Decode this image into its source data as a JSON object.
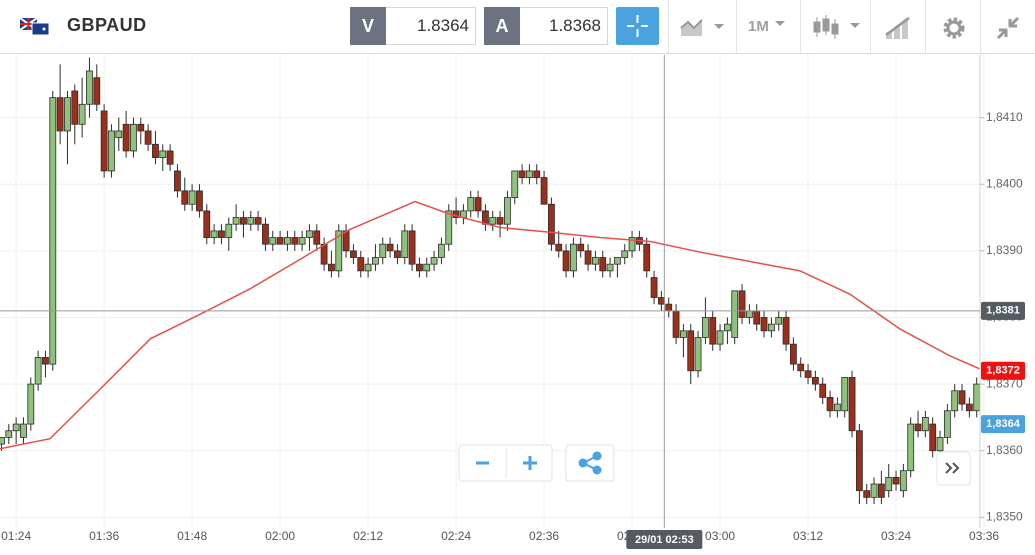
{
  "toolbar": {
    "symbol": "GBPAUD",
    "bid_label": "V",
    "bid": 1.8364,
    "ask_label": "A",
    "ask": 1.8368,
    "timeframe": "1M"
  },
  "chart_data": {
    "type": "candlestick",
    "up_color": "#8fc27c",
    "down_color": "#9c2f1c",
    "outline_color": "#2b2b2b",
    "candles": [
      [
        1.8361,
        1.8362,
        1.836,
        1.8362
      ],
      [
        1.8362,
        1.8364,
        1.8361,
        1.8363
      ],
      [
        1.8363,
        1.8365,
        1.8361,
        1.8364
      ],
      [
        1.8362,
        1.8365,
        1.8361,
        1.8364
      ],
      [
        1.8364,
        1.8371,
        1.8363,
        1.837
      ],
      [
        1.837,
        1.8375,
        1.8369,
        1.8374
      ],
      [
        1.8374,
        1.8375,
        1.8371,
        1.8373
      ],
      [
        1.8373,
        1.8414,
        1.8372,
        1.8413
      ],
      [
        1.8413,
        1.8418,
        1.8406,
        1.8408
      ],
      [
        1.8408,
        1.8414,
        1.8403,
        1.8413
      ],
      [
        1.8414,
        1.8415,
        1.8406,
        1.8409
      ],
      [
        1.8409,
        1.8416,
        1.8407,
        1.8412
      ],
      [
        1.8412,
        1.8419,
        1.841,
        1.8417
      ],
      [
        1.8416,
        1.8418,
        1.8411,
        1.8412
      ],
      [
        1.8411,
        1.8412,
        1.8401,
        1.8402
      ],
      [
        1.8402,
        1.8409,
        1.8401,
        1.8408
      ],
      [
        1.8407,
        1.841,
        1.8405,
        1.8408
      ],
      [
        1.8409,
        1.8411,
        1.8404,
        1.8405
      ],
      [
        1.8405,
        1.841,
        1.8404,
        1.8409
      ],
      [
        1.8409,
        1.841,
        1.8406,
        1.8408
      ],
      [
        1.8408,
        1.8409,
        1.8405,
        1.8406
      ],
      [
        1.8406,
        1.8408,
        1.8403,
        1.8404
      ],
      [
        1.8404,
        1.8406,
        1.8402,
        1.8405
      ],
      [
        1.8405,
        1.8406,
        1.8402,
        1.8403
      ],
      [
        1.8402,
        1.8403,
        1.8398,
        1.8399
      ],
      [
        1.8399,
        1.8401,
        1.8396,
        1.8397
      ],
      [
        1.8397,
        1.84,
        1.8396,
        1.8399
      ],
      [
        1.8399,
        1.84,
        1.8395,
        1.8396
      ],
      [
        1.8396,
        1.8397,
        1.8391,
        1.8392
      ],
      [
        1.8392,
        1.8394,
        1.8391,
        1.8393
      ],
      [
        1.8393,
        1.8394,
        1.8391,
        1.8392
      ],
      [
        1.8392,
        1.8395,
        1.839,
        1.8394
      ],
      [
        1.8394,
        1.8397,
        1.8393,
        1.8395
      ],
      [
        1.8395,
        1.8396,
        1.8392,
        1.8394
      ],
      [
        1.8394,
        1.8396,
        1.8393,
        1.8395
      ],
      [
        1.8395,
        1.8396,
        1.8393,
        1.8394
      ],
      [
        1.8394,
        1.8395,
        1.839,
        1.8391
      ],
      [
        1.8391,
        1.8393,
        1.839,
        1.8392
      ],
      [
        1.8392,
        1.8393,
        1.8391,
        1.8391
      ],
      [
        1.8391,
        1.8393,
        1.839,
        1.8392
      ],
      [
        1.8392,
        1.8393,
        1.839,
        1.8391
      ],
      [
        1.8391,
        1.8393,
        1.839,
        1.8392
      ],
      [
        1.8392,
        1.8394,
        1.839,
        1.8393
      ],
      [
        1.8393,
        1.8394,
        1.839,
        1.8391
      ],
      [
        1.8391,
        1.8392,
        1.8387,
        1.8388
      ],
      [
        1.8388,
        1.839,
        1.8386,
        1.8387
      ],
      [
        1.8387,
        1.8394,
        1.8386,
        1.8393
      ],
      [
        1.8393,
        1.8394,
        1.8389,
        1.839
      ],
      [
        1.839,
        1.8391,
        1.8388,
        1.8389
      ],
      [
        1.8389,
        1.839,
        1.8386,
        1.8387
      ],
      [
        1.8387,
        1.8389,
        1.8386,
        1.8388
      ],
      [
        1.8388,
        1.8391,
        1.8387,
        1.8389
      ],
      [
        1.8389,
        1.8392,
        1.8388,
        1.8391
      ],
      [
        1.8391,
        1.8392,
        1.8389,
        1.839
      ],
      [
        1.839,
        1.8391,
        1.8388,
        1.8389
      ],
      [
        1.8389,
        1.8394,
        1.8388,
        1.8393
      ],
      [
        1.8393,
        1.8394,
        1.8387,
        1.8388
      ],
      [
        1.8388,
        1.8389,
        1.8386,
        1.8387
      ],
      [
        1.8387,
        1.8389,
        1.8386,
        1.8388
      ],
      [
        1.8388,
        1.839,
        1.8387,
        1.8389
      ],
      [
        1.8389,
        1.8392,
        1.8388,
        1.8391
      ],
      [
        1.8391,
        1.8397,
        1.839,
        1.8396
      ],
      [
        1.8396,
        1.8398,
        1.8394,
        1.8395
      ],
      [
        1.8395,
        1.8397,
        1.8394,
        1.8396
      ],
      [
        1.8396,
        1.8399,
        1.8395,
        1.8398
      ],
      [
        1.8398,
        1.8399,
        1.8395,
        1.8396
      ],
      [
        1.8396,
        1.8397,
        1.8393,
        1.8394
      ],
      [
        1.8394,
        1.8396,
        1.8393,
        1.8395
      ],
      [
        1.8395,
        1.8396,
        1.8392,
        1.8394
      ],
      [
        1.8394,
        1.8399,
        1.8393,
        1.8398
      ],
      [
        1.8398,
        1.8402,
        1.8397,
        1.8402
      ],
      [
        1.8402,
        1.8403,
        1.84,
        1.8401
      ],
      [
        1.8401,
        1.8403,
        1.84,
        1.8402
      ],
      [
        1.8402,
        1.8403,
        1.84,
        1.8401
      ],
      [
        1.8401,
        1.8402,
        1.8397,
        1.8397
      ],
      [
        1.8397,
        1.8398,
        1.839,
        1.8391
      ],
      [
        1.8391,
        1.8393,
        1.8389,
        1.839
      ],
      [
        1.839,
        1.8391,
        1.8386,
        1.8387
      ],
      [
        1.8387,
        1.8392,
        1.8386,
        1.8391
      ],
      [
        1.8391,
        1.8392,
        1.8389,
        1.839
      ],
      [
        1.839,
        1.8391,
        1.8387,
        1.8388
      ],
      [
        1.8388,
        1.839,
        1.8387,
        1.8389
      ],
      [
        1.8389,
        1.839,
        1.8386,
        1.8387
      ],
      [
        1.8387,
        1.8389,
        1.8386,
        1.8388
      ],
      [
        1.8388,
        1.8389,
        1.8386,
        1.8389
      ],
      [
        1.8389,
        1.8391,
        1.8388,
        1.839
      ],
      [
        1.839,
        1.8393,
        1.8389,
        1.8392
      ],
      [
        1.8392,
        1.8393,
        1.839,
        1.8391
      ],
      [
        1.8391,
        1.8392,
        1.8386,
        1.8387
      ],
      [
        1.8386,
        1.8387,
        1.8382,
        1.8383
      ],
      [
        1.8383,
        1.8384,
        1.8381,
        1.8382
      ],
      [
        1.8382,
        1.8383,
        1.838,
        1.8381
      ],
      [
        1.8381,
        1.8382,
        1.8376,
        1.8377
      ],
      [
        1.8377,
        1.8379,
        1.8374,
        1.8378
      ],
      [
        1.8378,
        1.8379,
        1.837,
        1.8372
      ],
      [
        1.8372,
        1.8378,
        1.8371,
        1.8377
      ],
      [
        1.8377,
        1.8383,
        1.8376,
        1.838
      ],
      [
        1.838,
        1.8381,
        1.8375,
        1.8376
      ],
      [
        1.8376,
        1.8379,
        1.8375,
        1.8378
      ],
      [
        1.8378,
        1.838,
        1.8376,
        1.8379
      ],
      [
        1.8377,
        1.8384,
        1.8376,
        1.8384
      ],
      [
        1.8384,
        1.8385,
        1.8379,
        1.838
      ],
      [
        1.838,
        1.8382,
        1.8379,
        1.8381
      ],
      [
        1.8381,
        1.8382,
        1.8378,
        1.8379
      ],
      [
        1.838,
        1.8381,
        1.8377,
        1.8378
      ],
      [
        1.8378,
        1.838,
        1.8377,
        1.8379
      ],
      [
        1.8379,
        1.8381,
        1.8378,
        1.838
      ],
      [
        1.838,
        1.8381,
        1.8375,
        1.8376
      ],
      [
        1.8376,
        1.8377,
        1.8372,
        1.8373
      ],
      [
        1.8373,
        1.8374,
        1.8371,
        1.8372
      ],
      [
        1.8372,
        1.8373,
        1.837,
        1.8371
      ],
      [
        1.8371,
        1.8372,
        1.8369,
        1.837
      ],
      [
        1.837,
        1.8371,
        1.8367,
        1.8368
      ],
      [
        1.8368,
        1.8369,
        1.8365,
        1.8366
      ],
      [
        1.8366,
        1.8368,
        1.8365,
        1.8367
      ],
      [
        1.8366,
        1.8371,
        1.8365,
        1.8371
      ],
      [
        1.8371,
        1.8372,
        1.8362,
        1.8363
      ],
      [
        1.8363,
        1.8364,
        1.8352,
        1.8354
      ],
      [
        1.8354,
        1.8355,
        1.8352,
        1.8353
      ],
      [
        1.8353,
        1.8356,
        1.8352,
        1.8355
      ],
      [
        1.8355,
        1.8357,
        1.8352,
        1.8353
      ],
      [
        1.8354,
        1.8358,
        1.8353,
        1.8356
      ],
      [
        1.8356,
        1.8357,
        1.8354,
        1.8355
      ],
      [
        1.8354,
        1.8358,
        1.8353,
        1.8357
      ],
      [
        1.8357,
        1.8365,
        1.8356,
        1.8364
      ],
      [
        1.8364,
        1.8366,
        1.8362,
        1.8363
      ],
      [
        1.8363,
        1.8366,
        1.8362,
        1.8365
      ],
      [
        1.8364,
        1.8365,
        1.8359,
        1.836
      ],
      [
        1.836,
        1.8363,
        1.8359,
        1.8362
      ],
      [
        1.8362,
        1.8367,
        1.8361,
        1.8366
      ],
      [
        1.8366,
        1.837,
        1.8365,
        1.8369
      ],
      [
        1.8369,
        1.837,
        1.8366,
        1.8367
      ],
      [
        1.8367,
        1.8368,
        1.8365,
        1.8366
      ],
      [
        1.8366,
        1.8371,
        1.8365,
        1.837
      ]
    ],
    "moving_average": {
      "color": "#e8504a",
      "x": [
        -0.2,
        6.6,
        13.5,
        20.3,
        27.1,
        33.9,
        40.7,
        47.5,
        56.4,
        61.2,
        68,
        74.8,
        81.6,
        88.5,
        95.3,
        102.1,
        108.9,
        115.7,
        122.5,
        129.4,
        133.4
      ],
      "values": [
        1.83603,
        1.83618,
        1.83693,
        1.83768,
        1.83805,
        1.83843,
        1.83887,
        1.83932,
        1.83974,
        1.83955,
        1.83935,
        1.83928,
        1.8392,
        1.83914,
        1.83898,
        1.83884,
        1.8387,
        1.83835,
        1.83783,
        1.83742,
        1.83723
      ]
    },
    "xlim": [
      -0.2,
      133.45
    ],
    "ylim": [
      1.83484,
      1.84194
    ],
    "xticks": [
      {
        "value": 2,
        "label": "01:24"
      },
      {
        "value": 14,
        "label": "01:36"
      },
      {
        "value": 26,
        "label": "01:48"
      },
      {
        "value": 38,
        "label": "02:00"
      },
      {
        "value": 50,
        "label": "02:12"
      },
      {
        "value": 62,
        "label": "02:24"
      },
      {
        "value": 74,
        "label": "02:36"
      },
      {
        "value": 86,
        "label": "02:48"
      },
      {
        "value": 98,
        "label": "03:00"
      },
      {
        "value": 110,
        "label": "03:12"
      },
      {
        "value": 122,
        "label": "03:24"
      },
      {
        "value": 134,
        "label": "03:36"
      }
    ],
    "yticks": [
      {
        "value": 1.835,
        "label": "1,8350"
      },
      {
        "value": 1.836,
        "label": "1,8360"
      },
      {
        "value": 1.837,
        "label": "1,8370"
      },
      {
        "value": 1.838,
        "label": "1,8380"
      },
      {
        "value": 1.839,
        "label": "1,8390"
      },
      {
        "value": 1.84,
        "label": "1,8400"
      },
      {
        "value": 1.841,
        "label": "1,8410"
      }
    ],
    "grid": true,
    "crosshair": {
      "x": 90.4,
      "x_label": "29/01 02:53",
      "y": {
        "value": 1.8381,
        "label": "1,8381"
      },
      "color": "#555b63"
    },
    "price_labels": [
      {
        "value": 1.8372,
        "label": "1,8372",
        "color": "#ee1111"
      },
      {
        "value": 1.8364,
        "label": "1,8364",
        "color": "#4aa3df"
      }
    ]
  }
}
